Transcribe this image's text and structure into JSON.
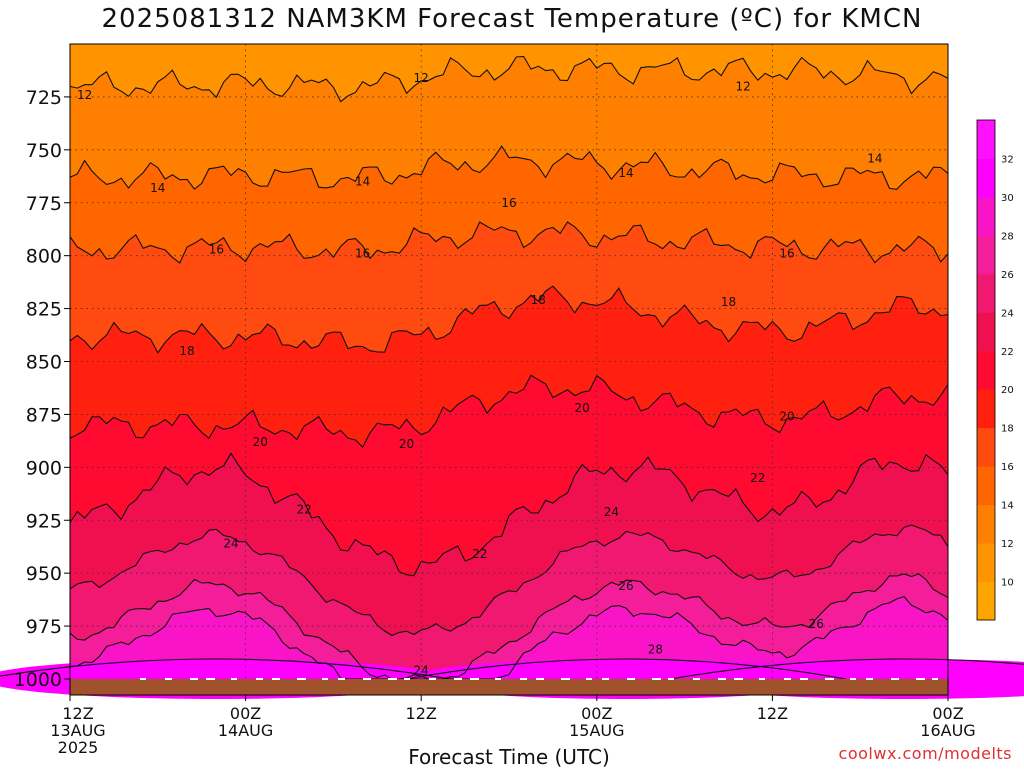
{
  "title": "2025081312 NAM3KM Forecast Temperature (ºC) for KMCN",
  "xlabel": "Forecast Time (UTC)",
  "credit": "coolwx.com/modelts",
  "colors": {
    "surface": "#a0522d",
    "ground_marks": "#ffffff"
  },
  "chart_data": {
    "type": "heatmap",
    "title": "2025081312 NAM3KM Forecast Temperature (ºC) for KMCN",
    "xlabel": "Forecast Time (UTC)",
    "ylabel": "",
    "x_range_hours": [
      0,
      60
    ],
    "y_range_hpa": [
      1000,
      700
    ],
    "y_ticks": [
      725,
      750,
      775,
      800,
      825,
      850,
      875,
      900,
      925,
      950,
      975,
      1000
    ],
    "x_ticks": [
      {
        "hour": 0,
        "lines": [
          "12Z",
          "13AUG",
          "2025"
        ]
      },
      {
        "hour": 12,
        "lines": [
          "00Z",
          "14AUG"
        ]
      },
      {
        "hour": 24,
        "lines": [
          "12Z"
        ]
      },
      {
        "hour": 36,
        "lines": [
          "00Z",
          "15AUG"
        ]
      },
      {
        "hour": 48,
        "lines": [
          "12Z"
        ]
      },
      {
        "hour": 60,
        "lines": [
          "00Z",
          "16AUG"
        ]
      }
    ],
    "grid": "dotted at each tick",
    "colorbar": {
      "levels": [
        10,
        12,
        14,
        16,
        18,
        20,
        22,
        24,
        26,
        28,
        30,
        32
      ],
      "colors": [
        "#ffa500",
        "#ff9400",
        "#ff8000",
        "#ff6600",
        "#ff4a10",
        "#ff2010",
        "#ff0a30",
        "#f01050",
        "#f01870",
        "#f41e9a",
        "#fa14c8",
        "#ff00ff",
        "#ff10ff"
      ]
    },
    "contour_labels": [
      {
        "value": "12",
        "hour": 1,
        "hpa": 724
      },
      {
        "value": "12",
        "hour": 24,
        "hpa": 716
      },
      {
        "value": "12",
        "hour": 46,
        "hpa": 720
      },
      {
        "value": "14",
        "hour": 6,
        "hpa": 768
      },
      {
        "value": "14",
        "hour": 20,
        "hpa": 765
      },
      {
        "value": "14",
        "hour": 38,
        "hpa": 761
      },
      {
        "value": "14",
        "hour": 55,
        "hpa": 754
      },
      {
        "value": "16",
        "hour": 10,
        "hpa": 797
      },
      {
        "value": "16",
        "hour": 20,
        "hpa": 799
      },
      {
        "value": "16",
        "hour": 30,
        "hpa": 775
      },
      {
        "value": "16",
        "hour": 49,
        "hpa": 799
      },
      {
        "value": "18",
        "hour": 8,
        "hpa": 845
      },
      {
        "value": "18",
        "hour": 32,
        "hpa": 821
      },
      {
        "value": "18",
        "hour": 45,
        "hpa": 822
      },
      {
        "value": "20",
        "hour": 13,
        "hpa": 888
      },
      {
        "value": "20",
        "hour": 23,
        "hpa": 889
      },
      {
        "value": "20",
        "hour": 35,
        "hpa": 872
      },
      {
        "value": "20",
        "hour": 49,
        "hpa": 876
      },
      {
        "value": "22",
        "hour": 16,
        "hpa": 920
      },
      {
        "value": "22",
        "hour": 28,
        "hpa": 941
      },
      {
        "value": "22",
        "hour": 47,
        "hpa": 905
      },
      {
        "value": "24",
        "hour": 11,
        "hpa": 936
      },
      {
        "value": "24",
        "hour": 24,
        "hpa": 996
      },
      {
        "value": "24",
        "hour": 37,
        "hpa": 921
      },
      {
        "value": "26",
        "hour": 38,
        "hpa": 956
      },
      {
        "value": "26",
        "hour": 51,
        "hpa": 974
      },
      {
        "value": "28",
        "hour": 40,
        "hpa": 986
      }
    ]
  }
}
